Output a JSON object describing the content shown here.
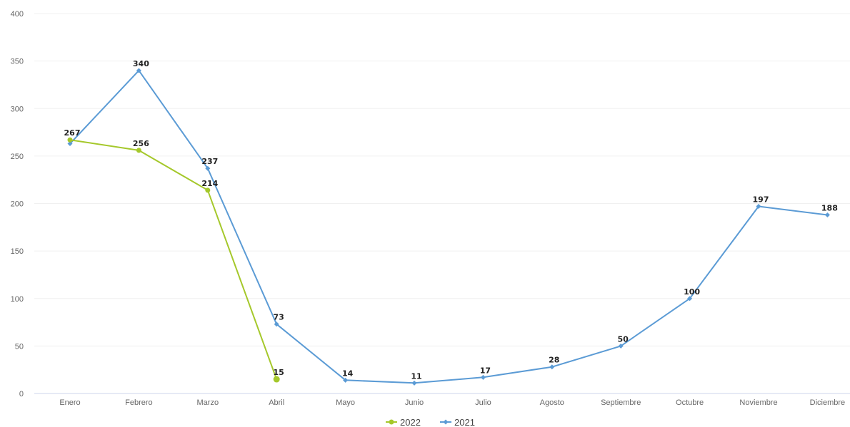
{
  "chart_data": {
    "type": "line",
    "categories": [
      "Enero",
      "Febrero",
      "Marzo",
      "Abril",
      "Mayo",
      "Junio",
      "Julio",
      "Agosto",
      "Septiembre",
      "Octubre",
      "Noviembre",
      "Diciembre"
    ],
    "series": [
      {
        "name": "2022",
        "color": "#a5c82b",
        "values": [
          267,
          256,
          214,
          15,
          null,
          null,
          null,
          null,
          null,
          null,
          null,
          null
        ]
      },
      {
        "name": "2021",
        "color": "#5b9bd5",
        "values": [
          263,
          340,
          237,
          73,
          14,
          11,
          17,
          28,
          50,
          100,
          197,
          188
        ]
      }
    ],
    "ylim": [
      0,
      400
    ],
    "yticks": [
      0,
      50,
      100,
      150,
      200,
      250,
      300,
      350,
      400
    ],
    "grid": true,
    "legend": "bottom-center",
    "data_labels_shown": [
      {
        "series": "2022",
        "index": 0,
        "text": "267"
      },
      {
        "series": "2022",
        "index": 1,
        "text": "256"
      },
      {
        "series": "2022",
        "index": 2,
        "text": "214"
      },
      {
        "series": "2022",
        "index": 3,
        "text": "15"
      },
      {
        "series": "2021",
        "index": 1,
        "text": "340"
      },
      {
        "series": "2021",
        "index": 2,
        "text": "237"
      },
      {
        "series": "2021",
        "index": 3,
        "text": "73"
      },
      {
        "series": "2021",
        "index": 4,
        "text": "14"
      },
      {
        "series": "2021",
        "index": 5,
        "text": "11"
      },
      {
        "series": "2021",
        "index": 6,
        "text": "17"
      },
      {
        "series": "2021",
        "index": 7,
        "text": "28"
      },
      {
        "series": "2021",
        "index": 8,
        "text": "50"
      },
      {
        "series": "2021",
        "index": 9,
        "text": "100"
      },
      {
        "series": "2021",
        "index": 10,
        "text": "197"
      },
      {
        "series": "2021",
        "index": 11,
        "text": "188"
      }
    ]
  }
}
